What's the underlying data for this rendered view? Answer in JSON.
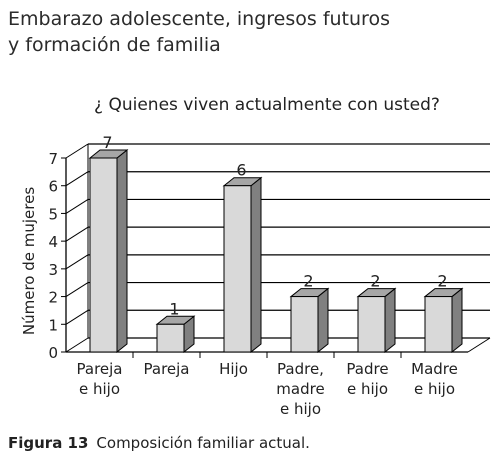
{
  "header": {
    "line1": "Embarazo adolescente, ingresos futuros",
    "line2": "y formación de familia"
  },
  "caption": {
    "label": "Figura 13",
    "text": "Composición familiar actual."
  },
  "chart_data": {
    "type": "bar",
    "title": "¿ Quienes viven actualmente con usted?",
    "ylabel": "Número de mujeres",
    "xlabel": "",
    "ylim": [
      0,
      7
    ],
    "yticks": [
      0,
      1,
      2,
      3,
      4,
      5,
      6,
      7
    ],
    "grid": true,
    "style": "3d",
    "categories": [
      [
        "Pareja",
        "e hijo"
      ],
      [
        "Pareja"
      ],
      [
        "Hijo"
      ],
      [
        "Padre,",
        "madre",
        "e hijo"
      ],
      [
        "Padre",
        "e hijo"
      ],
      [
        "Madre",
        "e hijo"
      ]
    ],
    "values": [
      7,
      1,
      6,
      2,
      2,
      2
    ],
    "data_labels": [
      "7",
      "1",
      "6",
      "2",
      "2",
      "2"
    ]
  }
}
